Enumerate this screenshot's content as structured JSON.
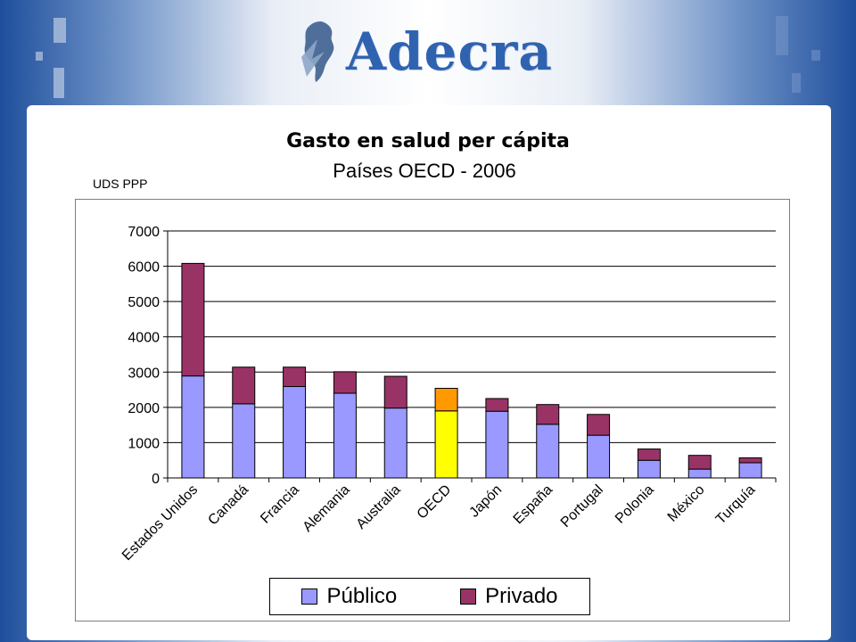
{
  "header": {
    "logo_text": "Adecra"
  },
  "colors": {
    "public": "#9999ff",
    "private": "#993366",
    "oecd_public": "#ffff00",
    "oecd_private": "#ff9900",
    "brand": "#2f63b0"
  },
  "chart_data": {
    "type": "bar",
    "stacked": true,
    "title": "Gasto en salud per cápita",
    "subtitle": "Países OECD - 2006",
    "ylabel": "UDS PPP",
    "xlabel": "",
    "ylim": [
      0,
      7000
    ],
    "yticks": [
      0,
      1000,
      2000,
      3000,
      4000,
      5000,
      6000,
      7000
    ],
    "grid": true,
    "legend_position": "bottom",
    "categories": [
      "Estados Unidos",
      "Canadá",
      "Francia",
      "Alemania",
      "Australia",
      "OECD",
      "Japón",
      "España",
      "Portugal",
      "Polonia",
      "México",
      "Turquía"
    ],
    "highlight_category": "OECD",
    "series": [
      {
        "name": "Público",
        "values": [
          2890,
          2100,
          2590,
          2400,
          1980,
          1900,
          1890,
          1520,
          1210,
          500,
          250,
          430
        ]
      },
      {
        "name": "Privado",
        "values": [
          3190,
          1040,
          550,
          610,
          900,
          640,
          360,
          560,
          590,
          320,
          390,
          140
        ]
      }
    ]
  }
}
